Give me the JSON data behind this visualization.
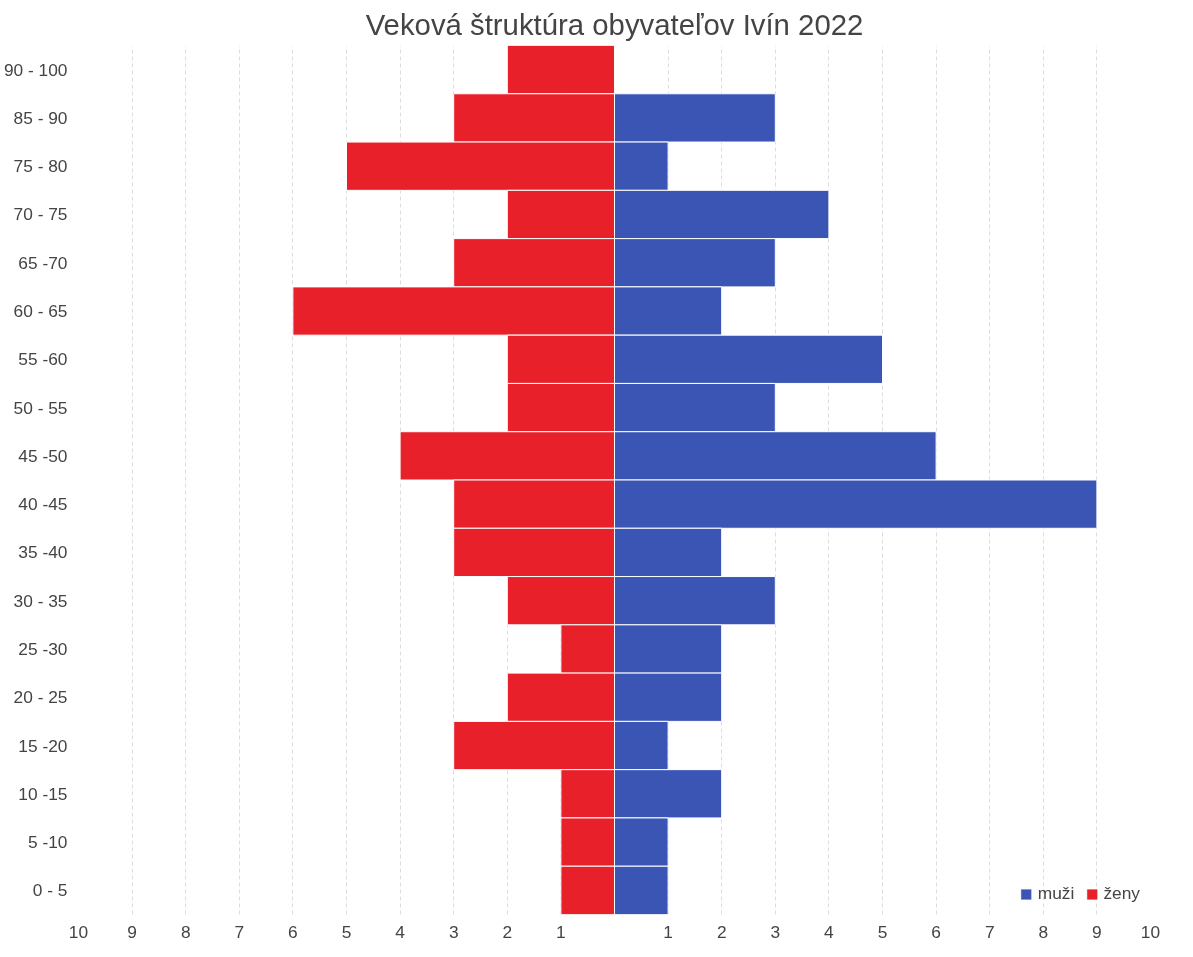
{
  "chart_data": {
    "type": "bar",
    "orientation": "horizontal",
    "title": "Veková štruktúra obyvateľov Ivín 2022",
    "categories": [
      "90 - 100",
      "85 - 90",
      "75 - 80",
      "70 - 75",
      "65 -70",
      "60 - 65",
      "55 -60",
      "50 - 55",
      "45 -50",
      "40 -45",
      "35 -40",
      "30 - 35",
      "25 -30",
      "20 - 25",
      "15 -20",
      "10 -15",
      "5 -10",
      "0 - 5"
    ],
    "series": [
      {
        "name": "muži",
        "color": "#3a55b4",
        "values": [
          null,
          3,
          1,
          4,
          3,
          2,
          5,
          3,
          6,
          9,
          2,
          3,
          2,
          2,
          1,
          2,
          1,
          1
        ]
      },
      {
        "name": "ženy",
        "color": "#e8202a",
        "values": [
          -2,
          -3,
          -5,
          -2,
          -3,
          -6,
          -2,
          -2,
          -4,
          -3,
          -3,
          -2,
          -1,
          -2,
          -3,
          -1,
          -1,
          -1
        ]
      }
    ],
    "xlim": [
      -10,
      10
    ],
    "xticks": [
      {
        "value": -10,
        "label": "10"
      },
      {
        "value": -9,
        "label": "9"
      },
      {
        "value": -8,
        "label": "8"
      },
      {
        "value": -7,
        "label": "7"
      },
      {
        "value": -6,
        "label": "6"
      },
      {
        "value": -5,
        "label": "5"
      },
      {
        "value": -4,
        "label": "4"
      },
      {
        "value": -3,
        "label": "3"
      },
      {
        "value": -2,
        "label": "2"
      },
      {
        "value": -1,
        "label": "1"
      },
      1,
      2,
      3,
      4,
      5,
      6,
      7,
      8,
      9,
      10
    ],
    "grid": "x",
    "stacked": true,
    "legend": "bottom right"
  }
}
